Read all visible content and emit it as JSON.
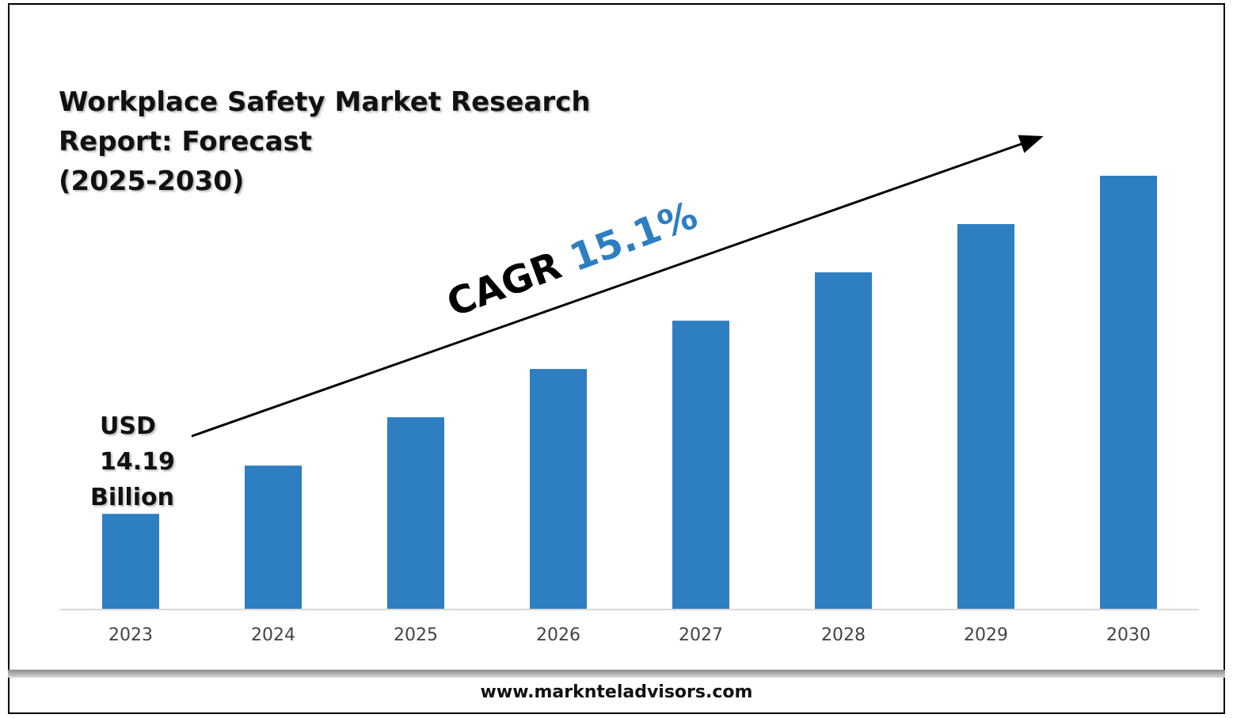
{
  "title_lines": [
    "Workplace Safety Market Research",
    "Report: Forecast",
    "(2025-2030)"
  ],
  "start_value_label": [
    "USD",
    "14.19",
    "Billion"
  ],
  "cagr": {
    "label": "CAGR",
    "value": "15.1%"
  },
  "footer": {
    "website": "www.marknteladvisors.com"
  },
  "colors": {
    "bar": "#2e7ec2",
    "cagr_value": "#2e7ec2",
    "text": "#111111",
    "axis": "#d9d9d9"
  },
  "chart_data": {
    "type": "bar",
    "title": "Workplace Safety Market Research Report: Forecast (2025-2030)",
    "categories": [
      "2023",
      "2024",
      "2025",
      "2026",
      "2027",
      "2028",
      "2029",
      "2030"
    ],
    "values": [
      14.19,
      21.41,
      28.64,
      35.86,
      43.08,
      50.31,
      57.53,
      64.76
    ],
    "unit": "USD Billion",
    "annotations": [
      "USD 14.19 Billion",
      "CAGR 15.1%"
    ],
    "xlabel": "",
    "ylabel": "",
    "ylim": [
      0,
      70
    ],
    "grid": false,
    "legend": "none"
  }
}
